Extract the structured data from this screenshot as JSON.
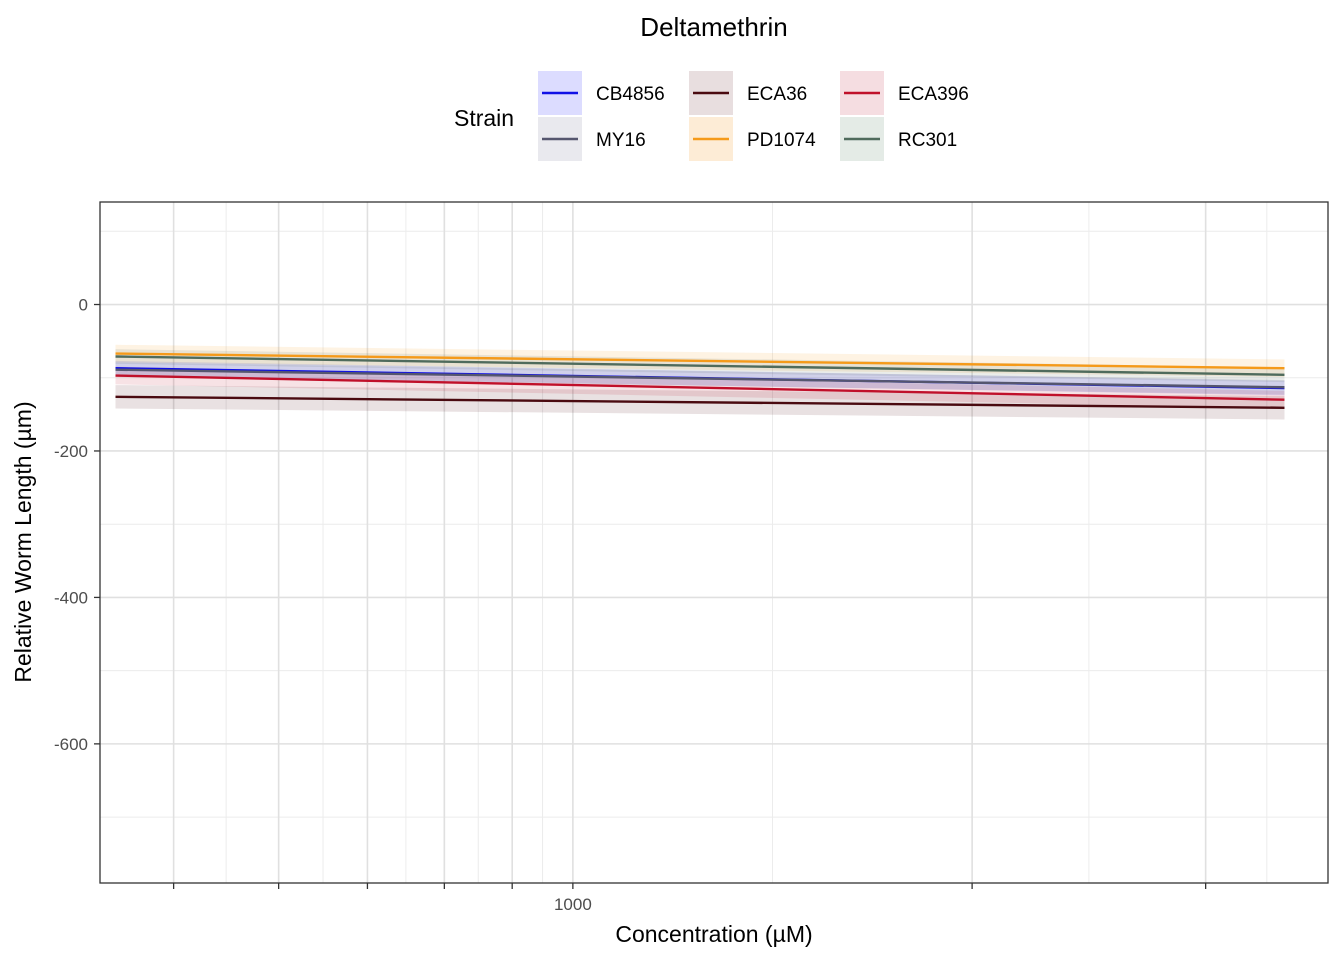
{
  "chart_data": {
    "type": "line",
    "title": "Deltamethrin",
    "xlabel": "Concentration (µM)",
    "ylabel": "Relative Worm Length (µm)",
    "x_scale": "log10",
    "xlim": [
      440,
      3710
    ],
    "ylim": [
      -790,
      140
    ],
    "x_major_ticks": [
      1000
    ],
    "y_major_ticks": [
      0,
      -200,
      -400,
      -600
    ],
    "legend": {
      "title": "Strain",
      "position": "top"
    },
    "x_range": [
      452,
      3440
    ],
    "series": [
      {
        "name": "CB4856",
        "color": "#1010e6",
        "fill": "#dcdcff",
        "values": [
          -87,
          -114
        ],
        "ci": 10
      },
      {
        "name": "ECA36",
        "color": "#4a0a10",
        "fill": "#e8dedf",
        "values": [
          -126,
          -141
        ],
        "ci": 16
      },
      {
        "name": "ECA396",
        "color": "#c0102a",
        "fill": "#f5dde1",
        "values": [
          -97,
          -130
        ],
        "ci": 12
      },
      {
        "name": "MY16",
        "color": "#55566e",
        "fill": "#e9e9ee",
        "values": [
          -89,
          -113
        ],
        "ci": 10
      },
      {
        "name": "PD1074",
        "color": "#f59a1a",
        "fill": "#fdecd6",
        "values": [
          -67,
          -87
        ],
        "ci": 12
      },
      {
        "name": "RC301",
        "color": "#4f6b5c",
        "fill": "#e4ebe6",
        "values": [
          -71,
          -96
        ],
        "ci": 10
      }
    ]
  }
}
